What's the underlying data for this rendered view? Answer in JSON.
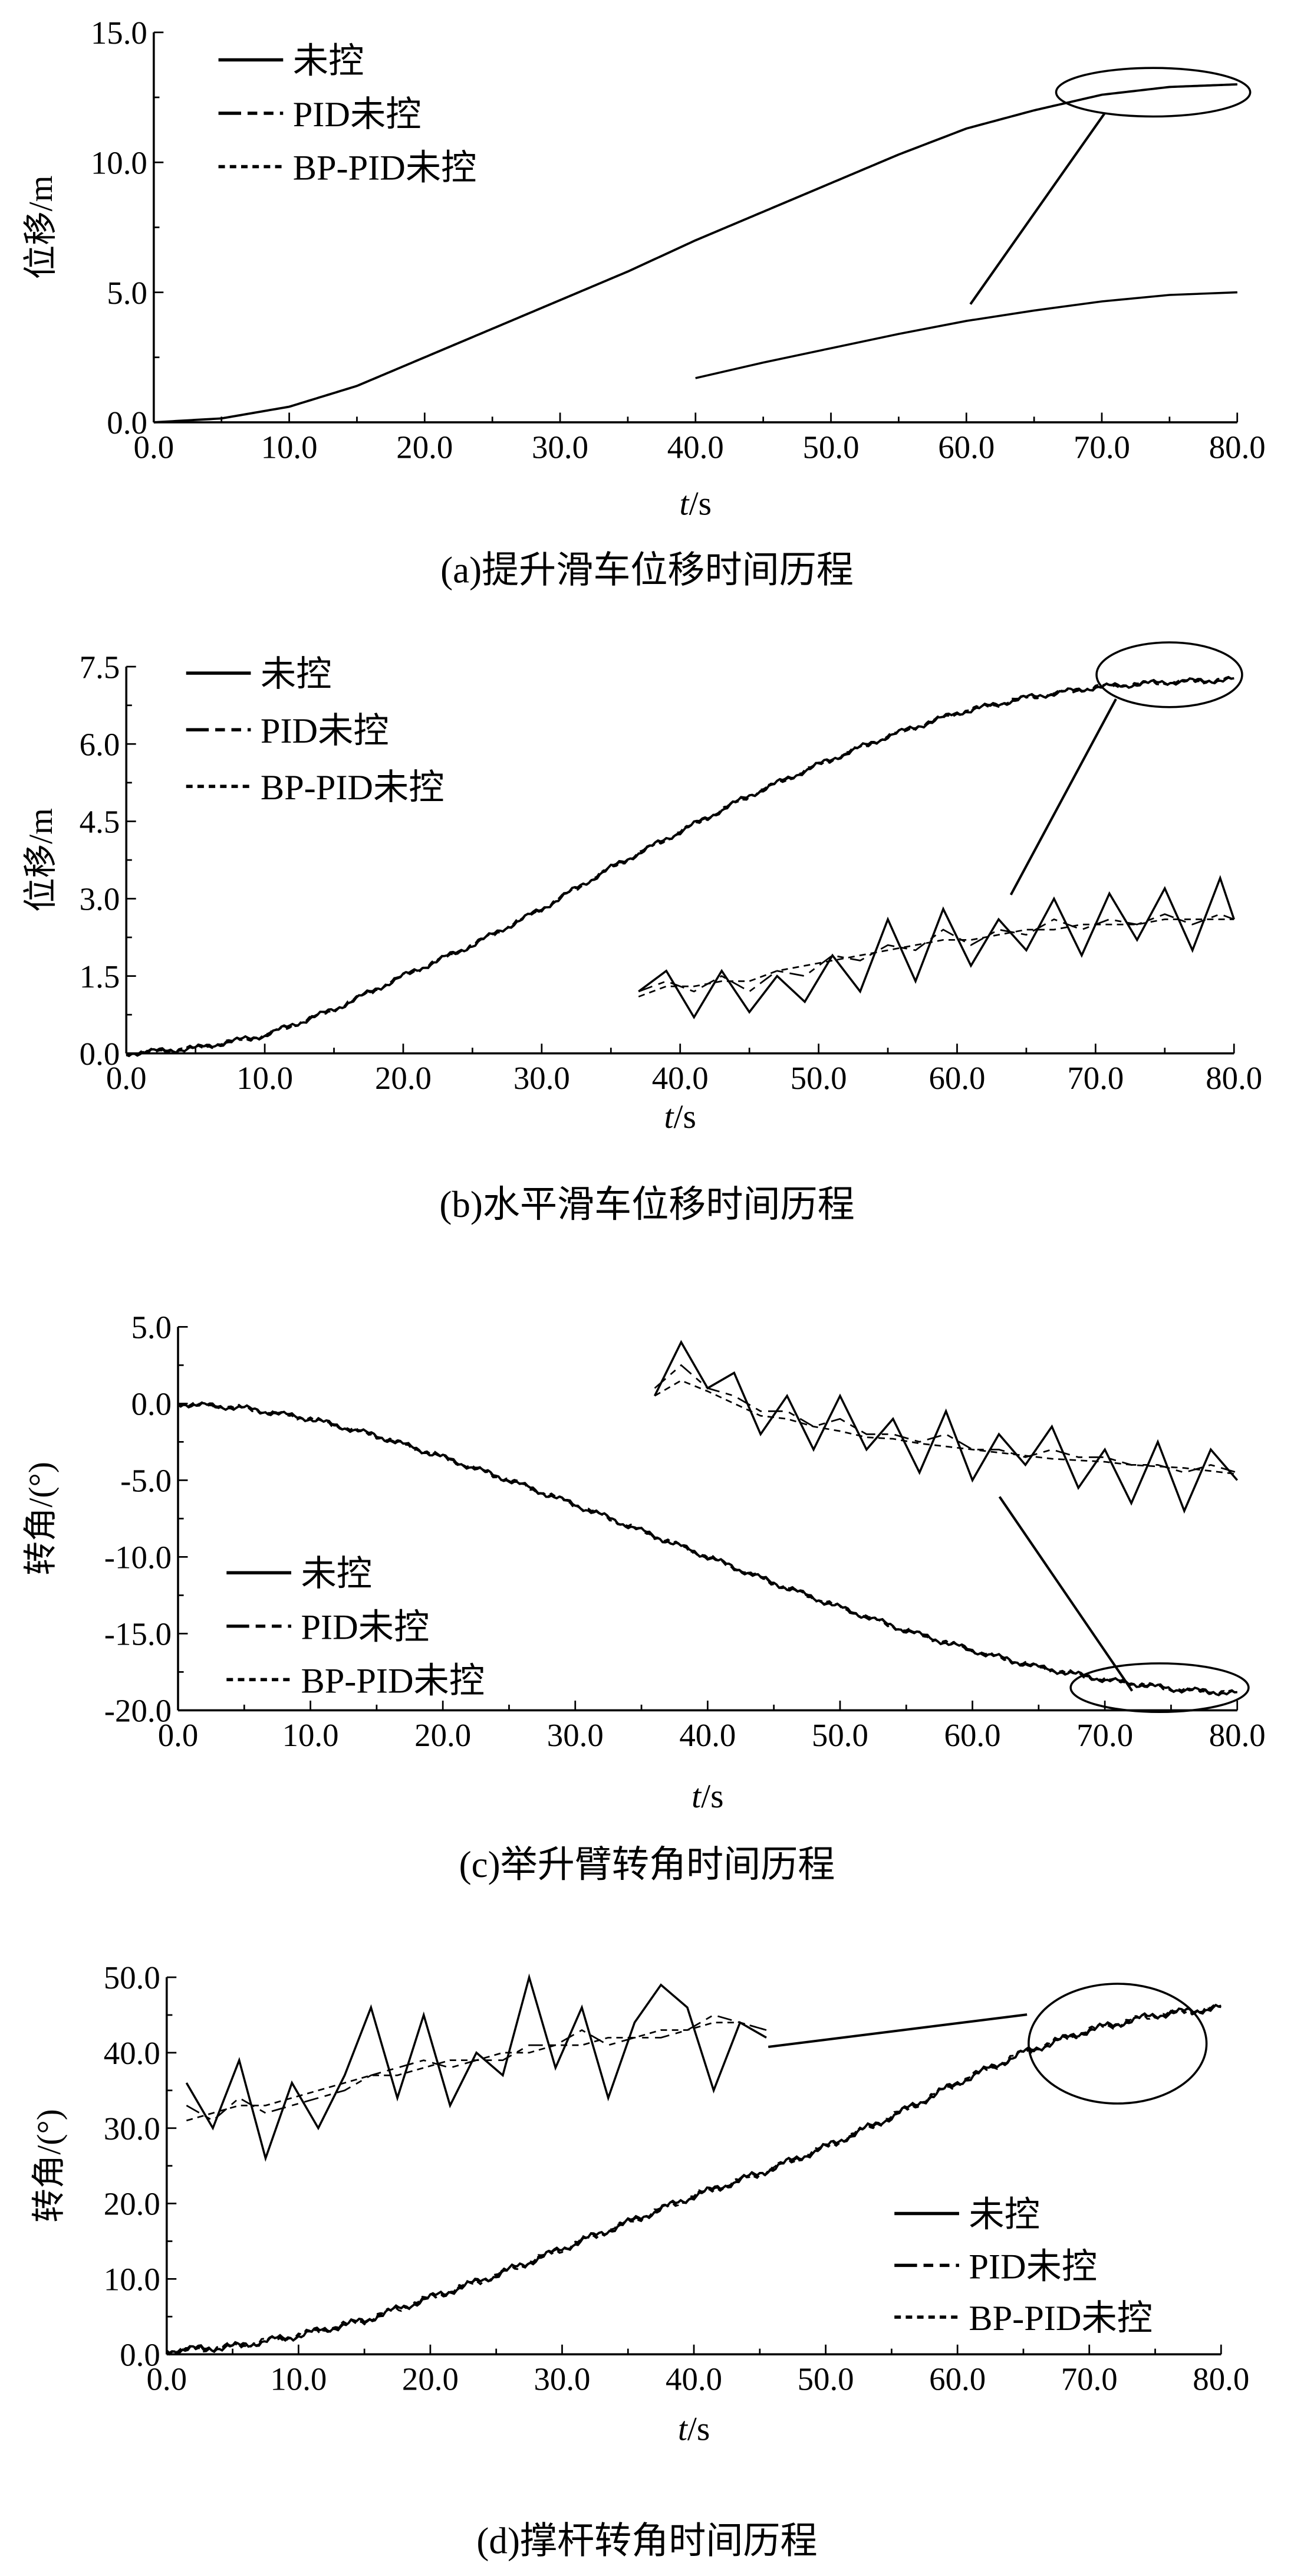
{
  "legend": [
    "未控",
    "PID未控",
    "BP-PID未控"
  ],
  "chart_data": [
    {
      "type": "line",
      "caption": "(a)提升滑车位移时间历程",
      "xlabel_italic": "t",
      "xlabel_unit": "/s",
      "ylabel": "位移/m",
      "xlim": [
        0,
        80
      ],
      "ylim": [
        0,
        15
      ],
      "xticks": [
        "0.0",
        "10.0",
        "20.0",
        "30.0",
        "40.0",
        "50.0",
        "60.0",
        "70.0",
        "80.0"
      ],
      "yticks": [
        "0.0",
        "5.0",
        "10.0",
        "15.0"
      ],
      "legend_placement": "top-left",
      "main": {
        "t": [
          0,
          5,
          10,
          15,
          20,
          25,
          30,
          35,
          40,
          45,
          50,
          55,
          60,
          65,
          70,
          75,
          80
        ],
        "y": [
          0,
          0.15,
          0.6,
          1.4,
          2.5,
          3.6,
          4.7,
          5.8,
          7.0,
          8.1,
          9.2,
          10.3,
          11.3,
          12.0,
          12.6,
          12.9,
          13.0
        ]
      },
      "inset": {
        "t": [
          40,
          45,
          50,
          55,
          60,
          65,
          70,
          75,
          80
        ],
        "series": [
          [
            1.7,
            2.3,
            2.85,
            3.4,
            3.9,
            4.3,
            4.65,
            4.9,
            5.0
          ],
          [
            1.7,
            2.3,
            2.85,
            3.4,
            3.9,
            4.3,
            4.65,
            4.9,
            5.0
          ],
          [
            1.7,
            2.3,
            2.85,
            3.4,
            3.9,
            4.3,
            4.65,
            4.9,
            5.0
          ]
        ]
      }
    },
    {
      "type": "line",
      "caption": "(b)水平滑车位移时间历程",
      "xlabel_italic": "t",
      "xlabel_unit": "/s",
      "ylabel": "位移/m",
      "xlim": [
        0,
        80
      ],
      "ylim": [
        0,
        7.5
      ],
      "xticks": [
        "0.0",
        "10.0",
        "20.0",
        "30.0",
        "40.0",
        "50.0",
        "60.0",
        "70.0",
        "80.0"
      ],
      "yticks": [
        "0.0",
        "1.5",
        "3.0",
        "4.5",
        "6.0",
        "7.5"
      ],
      "legend_placement": "top-left",
      "main": {
        "t": [
          0,
          5,
          10,
          15,
          20,
          25,
          30,
          35,
          40,
          45,
          50,
          55,
          60,
          65,
          70,
          75,
          80
        ],
        "y": [
          0,
          0.1,
          0.35,
          0.85,
          1.5,
          2.1,
          2.8,
          3.6,
          4.3,
          5.0,
          5.6,
          6.15,
          6.6,
          6.9,
          7.1,
          7.2,
          7.25
        ]
      },
      "inset": {
        "t": [
          37,
          39,
          41,
          43,
          45,
          47,
          49,
          51,
          53,
          55,
          57,
          59,
          61,
          63,
          65,
          67,
          69,
          71,
          73,
          75,
          77,
          79,
          80
        ],
        "series": [
          [
            1.2,
            1.6,
            0.7,
            1.6,
            0.8,
            1.5,
            1.0,
            1.9,
            1.2,
            2.6,
            1.4,
            2.8,
            1.7,
            2.6,
            2.0,
            3.0,
            1.9,
            3.1,
            2.2,
            3.2,
            2.0,
            3.4,
            2.6
          ],
          [
            1.2,
            1.4,
            1.2,
            1.5,
            1.2,
            1.6,
            1.5,
            1.9,
            1.8,
            2.1,
            2.0,
            2.4,
            2.1,
            2.4,
            2.3,
            2.6,
            2.4,
            2.6,
            2.5,
            2.7,
            2.5,
            2.7,
            2.6
          ],
          [
            1.1,
            1.3,
            1.3,
            1.4,
            1.4,
            1.6,
            1.7,
            1.8,
            1.9,
            2.0,
            2.1,
            2.2,
            2.2,
            2.3,
            2.4,
            2.4,
            2.5,
            2.5,
            2.5,
            2.6,
            2.6,
            2.6,
            2.6
          ]
        ]
      }
    },
    {
      "type": "line",
      "caption": "(c)举升臂转角时间历程",
      "xlabel_italic": "t",
      "xlabel_unit": "/s",
      "ylabel": "转角/(°)",
      "xlim": [
        0,
        80
      ],
      "ylim": [
        -20,
        5
      ],
      "xticks": [
        "0.0",
        "10.0",
        "20.0",
        "30.0",
        "40.0",
        "50.0",
        "60.0",
        "70.0",
        "80.0"
      ],
      "yticks": [
        "-20.0",
        "-15.0",
        "-10.0",
        "-5.0",
        "0.0",
        "5.0"
      ],
      "legend_placement": "bottom-left",
      "main": {
        "t": [
          0,
          5,
          10,
          15,
          20,
          25,
          30,
          35,
          40,
          45,
          50,
          55,
          60,
          65,
          70,
          75,
          80
        ],
        "y": [
          0,
          -0.3,
          -1.0,
          -2.1,
          -3.5,
          -5.0,
          -6.6,
          -8.3,
          -10.0,
          -11.7,
          -13.3,
          -14.8,
          -16.1,
          -17.2,
          -18.0,
          -18.6,
          -18.9
        ]
      },
      "inset": {
        "t": [
          36,
          38,
          40,
          42,
          44,
          46,
          48,
          50,
          52,
          54,
          56,
          58,
          60,
          62,
          64,
          66,
          68,
          70,
          72,
          74,
          76,
          78,
          80
        ],
        "series": [
          [
            0.5,
            4,
            1,
            2,
            -2,
            0.5,
            -3,
            0.5,
            -3,
            -1,
            -4.5,
            -0.5,
            -5,
            -2,
            -4,
            -1.5,
            -5.5,
            -3,
            -6.5,
            -2.5,
            -7,
            -3,
            -5
          ],
          [
            1,
            2.5,
            1,
            0.5,
            -0.5,
            -0.5,
            -1.5,
            -1,
            -2,
            -2,
            -2.5,
            -2,
            -3,
            -3,
            -3.5,
            -3,
            -3.5,
            -3.5,
            -4,
            -4,
            -4.5,
            -4,
            -4.5
          ],
          [
            0.5,
            1.5,
            0.8,
            0,
            -0.8,
            -1,
            -1.5,
            -1.8,
            -2.2,
            -2.3,
            -2.6,
            -2.8,
            -3,
            -3.2,
            -3.4,
            -3.6,
            -3.7,
            -3.8,
            -4,
            -4.1,
            -4.2,
            -4.4,
            -4.6
          ]
        ]
      }
    },
    {
      "type": "line",
      "caption": "(d)撑杆转角时间历程",
      "xlabel_italic": "t",
      "xlabel_unit": "/s",
      "ylabel": "转角/(°)",
      "xlim": [
        0,
        80
      ],
      "ylim": [
        0,
        50
      ],
      "xticks": [
        "0.0",
        "10.0",
        "20.0",
        "30.0",
        "40.0",
        "50.0",
        "60.0",
        "70.0",
        "80.0"
      ],
      "yticks": [
        "0.0",
        "10.0",
        "20.0",
        "30.0",
        "40.0",
        "50.0"
      ],
      "legend_placement": "bottom-right",
      "main": {
        "t": [
          0,
          5,
          10,
          15,
          20,
          25,
          30,
          35,
          40,
          45,
          50,
          55,
          60,
          65,
          70,
          75,
          80
        ],
        "y": [
          0.5,
          1,
          2.5,
          4.5,
          7.5,
          10.5,
          14,
          17.5,
          21,
          24,
          27.5,
          31.5,
          36,
          40,
          43,
          45,
          46
        ]
      },
      "inset": {
        "t": [
          1.5,
          3.5,
          5.5,
          7.5,
          9.5,
          11.5,
          13.5,
          15.5,
          17.5,
          19.5,
          21.5,
          23.5,
          25.5,
          27.5,
          29.5,
          31.5,
          33.5,
          35.5,
          37.5,
          39.5,
          41.5,
          43.5,
          45.5
        ],
        "series": [
          [
            36,
            30,
            39,
            26,
            36,
            30,
            37,
            46,
            34,
            45,
            33,
            40,
            37,
            50,
            38,
            46,
            34,
            44,
            49,
            46,
            35,
            44,
            42
          ],
          [
            33,
            31,
            34,
            32,
            33,
            34,
            35,
            37,
            38,
            39,
            38,
            39,
            39,
            41,
            41,
            43,
            41,
            42,
            42,
            43,
            45,
            44,
            43
          ],
          [
            31,
            32,
            33,
            33,
            34,
            35,
            36,
            37,
            37,
            38,
            39,
            39,
            40,
            40,
            41,
            41,
            42,
            42,
            43,
            43,
            44,
            44,
            43
          ]
        ]
      }
    }
  ]
}
